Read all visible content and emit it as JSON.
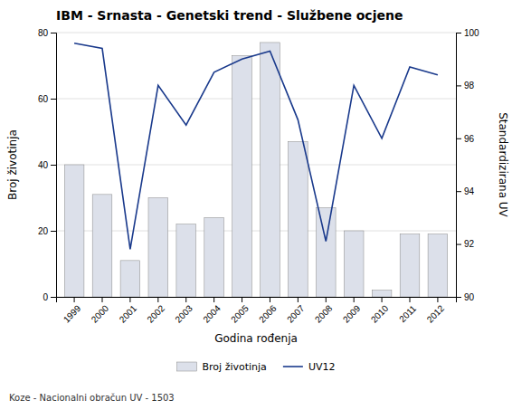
{
  "chart_data": {
    "type": "bar",
    "title": "IBM - Srnasta - Genetski trend - Službene ocjene",
    "xlabel": "Godina rođenja",
    "ylabel": "Broj životinja",
    "y2label": "Standardizirana UV",
    "annotations": [
      "Koze - Nacionalni obračun UV - 1503"
    ],
    "categories": [
      1999,
      2000,
      2001,
      2002,
      2003,
      2004,
      2005,
      2006,
      2007,
      2008,
      2009,
      2010,
      2011,
      2012
    ],
    "series": [
      {
        "name": "Broj životinja",
        "type": "bar",
        "color": "#dce0ea",
        "values": [
          40,
          31,
          11,
          30,
          22,
          24,
          73,
          77,
          47,
          27,
          20,
          2,
          19,
          19
        ]
      },
      {
        "name": "UV12",
        "type": "line",
        "color": "#1a3a8c",
        "axis": "y2",
        "values": [
          99.6,
          99.4,
          91.8,
          98.0,
          96.5,
          98.5,
          99.0,
          99.3,
          96.7,
          92.1,
          98.0,
          96.0,
          98.7,
          98.4
        ]
      }
    ],
    "ylim": [
      0,
      80
    ],
    "yticks": [
      0,
      20,
      40,
      60,
      80
    ],
    "y2lim": [
      90,
      100
    ],
    "y2ticks": [
      90,
      92,
      94,
      96,
      98,
      100
    ],
    "grid": true,
    "legend": "bottom"
  }
}
